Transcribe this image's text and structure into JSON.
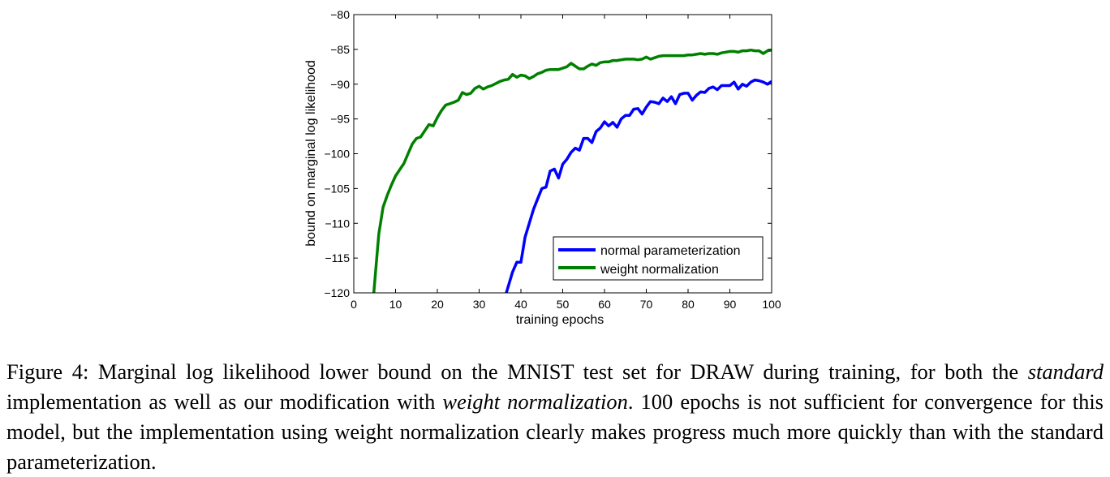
{
  "chart_data": {
    "type": "line",
    "xlabel": "training epochs",
    "ylabel": "bound on marginal log likelihood",
    "xlim": [
      0,
      100
    ],
    "ylim": [
      -120,
      -80
    ],
    "xticks": [
      "0",
      "10",
      "20",
      "30",
      "40",
      "50",
      "60",
      "70",
      "80",
      "90",
      "100"
    ],
    "yticks": [
      "−80",
      "−85",
      "−90",
      "−95",
      "−100",
      "−105",
      "−110",
      "−115",
      "−120"
    ],
    "legend_position": "lower-right",
    "series": [
      {
        "name": "normal parameterization",
        "color": "#0000ff",
        "x": [
          36.5,
          38,
          39,
          40,
          41,
          42,
          43,
          44,
          45,
          46,
          47,
          48,
          49,
          50,
          51,
          52,
          53,
          54,
          55,
          56,
          57,
          58,
          59,
          60,
          61,
          62,
          63,
          64,
          65,
          66,
          67,
          68,
          69,
          70,
          71,
          72,
          73,
          74,
          75,
          76,
          77,
          78,
          79,
          80,
          81,
          82,
          83,
          84,
          85,
          86,
          87,
          88,
          89,
          90,
          91,
          92,
          93,
          94,
          95,
          96,
          97,
          98,
          99,
          100
        ],
        "y": [
          -120,
          -117,
          -115.6,
          -115.6,
          -112,
          -110,
          -108,
          -106.5,
          -105,
          -104.8,
          -102.5,
          -102.2,
          -103.5,
          -101.5,
          -100.8,
          -99.8,
          -99.2,
          -99.5,
          -97.8,
          -97.8,
          -98.4,
          -96.8,
          -96.3,
          -95.4,
          -96,
          -95.5,
          -96.2,
          -95,
          -94.5,
          -94.5,
          -93.6,
          -93.5,
          -94.3,
          -93.3,
          -92.5,
          -92.6,
          -92.8,
          -92,
          -92.5,
          -91.8,
          -92.8,
          -91.5,
          -91.3,
          -91.3,
          -92.3,
          -91.6,
          -91.1,
          -91.2,
          -90.6,
          -90.4,
          -90.8,
          -90.2,
          -90.2,
          -90.2,
          -89.7,
          -90.7,
          -90,
          -90.3,
          -89.7,
          -89.4,
          -89.5,
          -89.7,
          -90,
          -89.6
        ]
      },
      {
        "name": "weight normalization",
        "color": "#008000",
        "x": [
          4.8,
          5.5,
          6,
          7,
          8,
          9,
          10,
          11,
          12,
          13,
          14,
          15,
          16,
          17,
          18,
          19,
          20,
          21,
          22,
          23,
          24,
          25,
          26,
          27,
          28,
          29,
          30,
          31,
          32,
          33,
          34,
          35,
          36,
          37,
          38,
          39,
          40,
          41,
          42,
          43,
          44,
          45,
          46,
          47,
          48,
          49,
          50,
          51,
          52,
          53,
          54,
          55,
          56,
          57,
          58,
          59,
          60,
          61,
          62,
          63,
          64,
          65,
          66,
          67,
          68,
          69,
          70,
          71,
          72,
          73,
          74,
          75,
          76,
          77,
          78,
          79,
          80,
          81,
          82,
          83,
          84,
          85,
          86,
          87,
          88,
          89,
          90,
          91,
          92,
          93,
          94,
          95,
          96,
          97,
          98,
          99,
          100
        ],
        "y": [
          -120,
          -115,
          -111.5,
          -107.7,
          -106,
          -104.5,
          -103.2,
          -102.3,
          -101.4,
          -100,
          -98.6,
          -97.8,
          -97.6,
          -96.7,
          -95.8,
          -96,
          -94.8,
          -93.8,
          -93,
          -92.8,
          -92.6,
          -92.3,
          -91.2,
          -91.5,
          -91.3,
          -90.6,
          -90.3,
          -90.7,
          -90.4,
          -90.2,
          -89.9,
          -89.6,
          -89.4,
          -89.3,
          -88.6,
          -89,
          -88.7,
          -88.8,
          -89.2,
          -88.9,
          -88.5,
          -88.3,
          -88,
          -87.9,
          -87.9,
          -87.9,
          -87.7,
          -87.5,
          -87,
          -87.4,
          -87.8,
          -87.8,
          -87.4,
          -87.1,
          -87.3,
          -86.9,
          -86.8,
          -86.8,
          -86.6,
          -86.6,
          -86.5,
          -86.4,
          -86.4,
          -86.4,
          -86.5,
          -86.4,
          -86.1,
          -86.4,
          -86.2,
          -86,
          -85.9,
          -85.9,
          -85.9,
          -85.9,
          -85.9,
          -85.9,
          -85.8,
          -85.8,
          -85.7,
          -85.6,
          -85.7,
          -85.6,
          -85.6,
          -85.7,
          -85.5,
          -85.4,
          -85.3,
          -85.3,
          -85.4,
          -85.2,
          -85.2,
          -85.1,
          -85.2,
          -85.2,
          -85.6,
          -85.2,
          -85.1
        ]
      }
    ]
  },
  "caption": {
    "text_1": "Figure 4: Marginal log likelihood lower bound on the MNIST test set for DRAW during training, for both the ",
    "italic_1": "standard",
    "text_2": " implementation as well as our modification with ",
    "italic_2": "weight normalization",
    "text_3": ". 100 epochs is not sufficient for convergence for this model, but the implementation using weight normalization clearly makes progress much more quickly than with the standard parameterization."
  }
}
